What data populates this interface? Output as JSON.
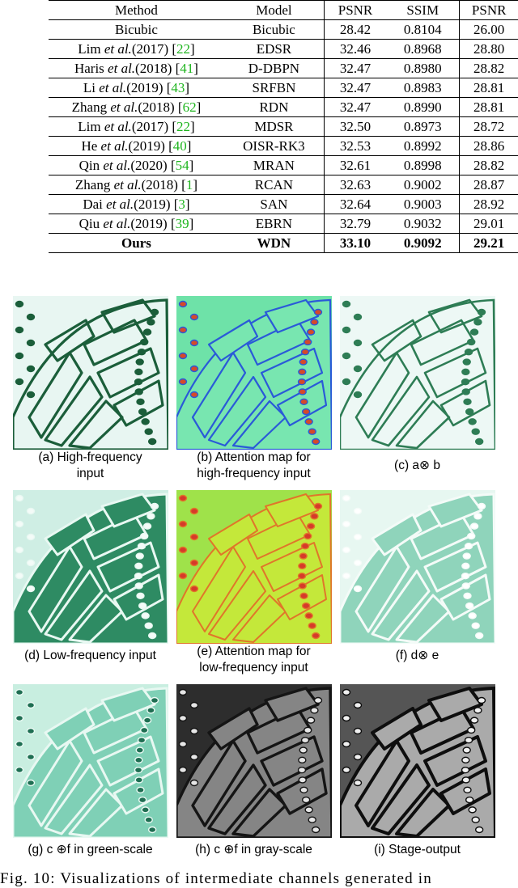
{
  "table": {
    "headers": [
      "Method",
      "Model",
      "PSNR",
      "SSIM",
      "PSNR"
    ],
    "rows": [
      {
        "method": "Bicubic",
        "model": "Bicubic",
        "psnr1": "28.42",
        "ssim": "0.8104",
        "psnr2": "26.00"
      },
      {
        "author": "Lim",
        "year": "(2017)",
        "cite": "22",
        "model": "EDSR",
        "psnr1": "32.46",
        "ssim": "0.8968",
        "psnr2": "28.80"
      },
      {
        "author": "Haris",
        "year": "(2018)",
        "cite": "41",
        "model": "D-DBPN",
        "psnr1": "32.47",
        "ssim": "0.8980",
        "psnr2": "28.82"
      },
      {
        "author": "Li",
        "year": "(2019)",
        "cite": "43",
        "model": "SRFBN",
        "psnr1": "32.47",
        "ssim": "0.8983",
        "psnr2": "28.81"
      },
      {
        "author": "Zhang",
        "year": "(2018)",
        "cite": "62",
        "model": "RDN",
        "psnr1": "32.47",
        "ssim": "0.8990",
        "psnr2": "28.81"
      },
      {
        "author": "Lim",
        "year": "(2017)",
        "cite": "22",
        "model": "MDSR",
        "psnr1": "32.50",
        "ssim": "0.8973",
        "psnr2": "28.72"
      },
      {
        "author": "He",
        "year": "(2019)",
        "cite": "40",
        "model": "OISR-RK3",
        "psnr1": "32.53",
        "ssim": "0.8992",
        "psnr2": "28.86"
      },
      {
        "author": "Qin",
        "year": "(2020)",
        "cite": "54",
        "model": "MRAN",
        "psnr1": "32.61",
        "ssim": "0.8998",
        "psnr2": "28.82"
      },
      {
        "author": "Zhang",
        "year": "(2018)",
        "cite": "1",
        "model": "RCAN",
        "psnr1": "32.63",
        "ssim": "0.9002",
        "psnr2": "28.87"
      },
      {
        "author": "Dai",
        "year": "(2019)",
        "cite": "3",
        "model": "SAN",
        "psnr1": "32.64",
        "ssim": "0.9003",
        "psnr2": "28.92"
      },
      {
        "author": "Qiu",
        "year": "(2019)",
        "cite": "39",
        "model": "EBRN",
        "psnr1": "32.79",
        "ssim": "0.9032",
        "psnr2": "29.01"
      },
      {
        "method": "Ours",
        "model": "WDN",
        "psnr1": "33.10",
        "ssim": "0.9092",
        "psnr2": "29.21"
      }
    ],
    "etal_text": "et al."
  },
  "figure": {
    "panels": [
      {
        "id": "a",
        "caption_line1": "(a) High-frequency",
        "caption_line2": "input",
        "style": "green-edges"
      },
      {
        "id": "b",
        "caption_line1": "(b) Attention map for",
        "caption_line2": "high-frequency input",
        "style": "attention-cool"
      },
      {
        "id": "c",
        "caption_line1": "(c) a⊗ b",
        "caption_line2": "",
        "style": "green-edges-light"
      },
      {
        "id": "d",
        "caption_line1": "(d) Low-frequency input",
        "caption_line2": "",
        "style": "green-fill"
      },
      {
        "id": "e",
        "caption_line1": "(e) Attention map for",
        "caption_line2": "low-frequency input",
        "style": "attention-warm"
      },
      {
        "id": "f",
        "caption_line1": "(f) d⊗ e",
        "caption_line2": "",
        "style": "green-fill-light"
      },
      {
        "id": "g",
        "caption_line1": "(g) c ⊕f in green-scale",
        "caption_line2": "",
        "style": "green-scale"
      },
      {
        "id": "h",
        "caption_line1": "(h) c ⊕f in gray-scale",
        "caption_line2": "",
        "style": "gray-scale-dark"
      },
      {
        "id": "i",
        "caption_line1": "(i) Stage-output",
        "caption_line2": "",
        "style": "gray-scale-output"
      }
    ],
    "caption": "Fig. 10: Visualizations of intermediate channels generated in"
  }
}
